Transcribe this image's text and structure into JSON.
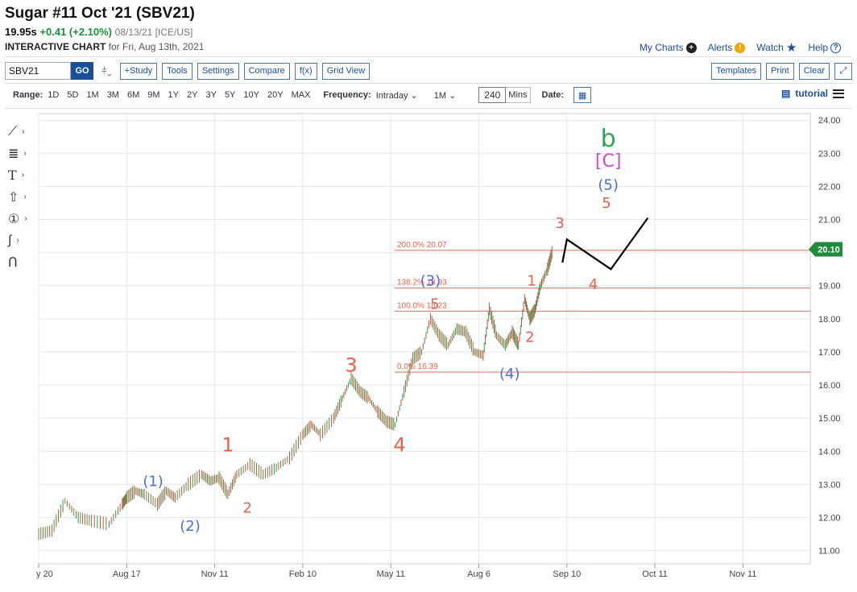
{
  "header": {
    "title": "Sugar #11 Oct '21 (SBV21)",
    "last": "19.95s",
    "change": "+0.41 (+2.10%)",
    "meta": "08/13/21 [ICE/US]",
    "sub_bold": "INTERACTIVE CHART",
    "sub_rest": " for Fri, Aug 13th, 2021"
  },
  "links": {
    "my_charts": "My Charts",
    "alerts": "Alerts",
    "watch": "Watch",
    "help": "Help"
  },
  "toolbar": {
    "symbol": "SBV21",
    "go": "GO",
    "study": "+Study",
    "tools": "Tools",
    "settings": "Settings",
    "compare": "Compare",
    "fx": "f(x)",
    "grid_view": "Grid View",
    "templates": "Templates",
    "print": "Print",
    "clear": "Clear"
  },
  "rangebar": {
    "range_label": "Range:",
    "ranges": [
      "1D",
      "5D",
      "1M",
      "3M",
      "6M",
      "9M",
      "1Y",
      "2Y",
      "3Y",
      "5Y",
      "10Y",
      "20Y",
      "MAX"
    ],
    "frequency_label": "Frequency:",
    "frequency": "Intraday",
    "period": "1M",
    "minutes": "240",
    "minutes_label": "Mins",
    "date_label": "Date:",
    "tutorial": "tutorial"
  },
  "colors": {
    "up": "#2e9e4a",
    "down": "#d94a3a",
    "fib": "#e8897e",
    "wave_red": "#e8604c",
    "wave_blue": "#4a6fd8",
    "wave_green": "#2ea35a",
    "wave_magenta": "#d04ac8",
    "price_tag": "#1e8c3a"
  },
  "chart_data": {
    "type": "line",
    "ylim": [
      10.6,
      24.2
    ],
    "y_ticks": [
      "24.00",
      "23.00",
      "22.00",
      "21.00",
      "20.00",
      "19.00",
      "18.00",
      "17.00",
      "16.00",
      "15.00",
      "14.00",
      "13.00",
      "12.00",
      "11.00"
    ],
    "x_ticks": [
      "y 20",
      "Aug 17",
      "Nov 11",
      "Feb 10",
      "May 11",
      "Aug 6",
      "Sep 10",
      "Oct 11",
      "Nov 11"
    ],
    "last_price_label": "20.10",
    "last_price": 20.1,
    "price_series": [
      [
        0.0,
        11.5
      ],
      [
        0.15,
        11.6
      ],
      [
        0.3,
        12.5
      ],
      [
        0.45,
        12.0
      ],
      [
        0.6,
        11.9
      ],
      [
        0.8,
        11.8
      ],
      [
        0.95,
        12.4
      ],
      [
        1.0,
        12.6
      ],
      [
        1.1,
        12.8
      ],
      [
        1.2,
        12.7
      ],
      [
        1.35,
        12.4
      ],
      [
        1.45,
        12.8
      ],
      [
        1.55,
        12.6
      ],
      [
        1.7,
        13.0
      ],
      [
        1.85,
        13.3
      ],
      [
        1.95,
        13.1
      ],
      [
        2.05,
        13.2
      ],
      [
        2.15,
        12.7
      ],
      [
        2.25,
        13.3
      ],
      [
        2.4,
        13.6
      ],
      [
        2.55,
        13.3
      ],
      [
        2.7,
        13.5
      ],
      [
        2.85,
        13.8
      ],
      [
        3.0,
        14.5
      ],
      [
        3.1,
        14.8
      ],
      [
        3.2,
        14.5
      ],
      [
        3.35,
        15.0
      ],
      [
        3.45,
        15.6
      ],
      [
        3.55,
        16.2
      ],
      [
        3.65,
        15.8
      ],
      [
        3.75,
        15.6
      ],
      [
        3.85,
        15.2
      ],
      [
        3.95,
        14.9
      ],
      [
        4.05,
        14.8
      ],
      [
        4.15,
        15.8
      ],
      [
        4.25,
        16.8
      ],
      [
        4.35,
        17.0
      ],
      [
        4.45,
        18.0
      ],
      [
        4.55,
        17.5
      ],
      [
        4.65,
        17.2
      ],
      [
        4.75,
        17.7
      ],
      [
        4.85,
        17.6
      ],
      [
        4.95,
        17.0
      ],
      [
        5.05,
        16.9
      ],
      [
        5.12,
        18.3
      ],
      [
        5.2,
        17.5
      ],
      [
        5.3,
        17.2
      ],
      [
        5.38,
        17.6
      ],
      [
        5.45,
        17.2
      ],
      [
        5.52,
        18.6
      ],
      [
        5.58,
        18.0
      ],
      [
        5.64,
        18.3
      ],
      [
        5.7,
        19.0
      ],
      [
        5.78,
        19.5
      ],
      [
        5.84,
        20.1
      ]
    ],
    "projection": [
      [
        5.95,
        19.7
      ],
      [
        6.0,
        20.4
      ],
      [
        6.5,
        19.5
      ],
      [
        6.92,
        21.05
      ]
    ],
    "fib_levels": [
      {
        "label": "200.0% 20.07",
        "value": 20.07
      },
      {
        "label": "138.2% 18.93",
        "value": 18.93
      },
      {
        "label": "100.0% 18.23",
        "value": 18.23
      },
      {
        "label": "0.0% 16.39",
        "value": 16.39
      }
    ],
    "wave_labels": [
      {
        "text": "1",
        "x": 2.15,
        "y": 14.0,
        "color": "red"
      },
      {
        "text": "2",
        "x": 2.37,
        "y": 12.15,
        "color": "red"
      },
      {
        "text": "3",
        "x": 3.55,
        "y": 16.4,
        "color": "red"
      },
      {
        "text": "4",
        "x": 4.1,
        "y": 14.0,
        "color": "red"
      },
      {
        "text": "5",
        "x": 4.5,
        "y": 18.3,
        "color": "red"
      },
      {
        "text": "1",
        "x": 5.6,
        "y": 19.0,
        "color": "red"
      },
      {
        "text": "2",
        "x": 5.58,
        "y": 17.3,
        "color": "red"
      },
      {
        "text": "3",
        "x": 5.92,
        "y": 20.75,
        "color": "red"
      },
      {
        "text": "4",
        "x": 6.3,
        "y": 18.9,
        "color": "red"
      },
      {
        "text": "5",
        "x": 6.45,
        "y": 21.35,
        "color": "red"
      },
      {
        "text": "(1)",
        "x": 1.3,
        "y": 12.95,
        "color": "blue"
      },
      {
        "text": "(2)",
        "x": 1.72,
        "y": 11.6,
        "color": "blue"
      },
      {
        "text": "(3)",
        "x": 4.45,
        "y": 19.0,
        "color": "blue"
      },
      {
        "text": "(4)",
        "x": 5.35,
        "y": 16.2,
        "color": "blue"
      },
      {
        "text": "(5)",
        "x": 6.47,
        "y": 21.9,
        "color": "blue"
      },
      {
        "text": "[C]",
        "x": 6.47,
        "y": 22.6,
        "color": "magenta"
      },
      {
        "text": "b",
        "x": 6.47,
        "y": 23.2,
        "color": "green"
      }
    ]
  }
}
